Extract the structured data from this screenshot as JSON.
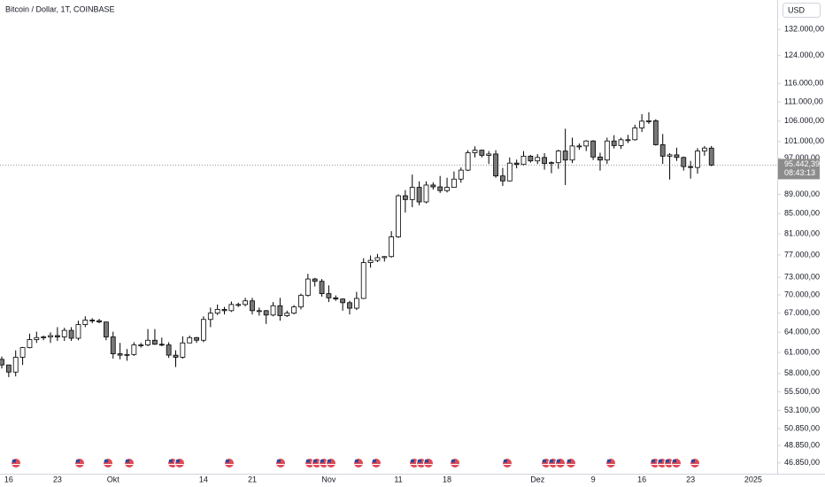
{
  "chart_data": {
    "type": "candlestick",
    "title": "Bitcoin / Dollar, 1T, COINBASE",
    "currency": "USD",
    "log_scale": true,
    "grid": false,
    "up_color": "#ffffff",
    "down_color": "#787878",
    "border_color": "#000000",
    "ylim": [
      45650,
      141600
    ],
    "yticks": [
      {
        "value": 132000,
        "label": "132.000,00"
      },
      {
        "value": 124000,
        "label": "124.000,00"
      },
      {
        "value": 116000,
        "label": "116.000,00"
      },
      {
        "value": 111000,
        "label": "111.000,00"
      },
      {
        "value": 106000,
        "label": "106.000,00"
      },
      {
        "value": 101000,
        "label": "101.000,00"
      },
      {
        "value": 97000,
        "label": "97.000,00"
      },
      {
        "value": 89000,
        "label": "89.000,00"
      },
      {
        "value": 85000,
        "label": "85.000,00"
      },
      {
        "value": 81000,
        "label": "81.000,00"
      },
      {
        "value": 77000,
        "label": "77.000,00"
      },
      {
        "value": 73000,
        "label": "73.000,00"
      },
      {
        "value": 70000,
        "label": "70.000,00"
      },
      {
        "value": 67000,
        "label": "67.000,00"
      },
      {
        "value": 64000,
        "label": "64.000,00"
      },
      {
        "value": 61000,
        "label": "61.000,00"
      },
      {
        "value": 58000,
        "label": "58.000,00"
      },
      {
        "value": 55500,
        "label": "55.500,00"
      },
      {
        "value": 53100,
        "label": "53.100,00"
      },
      {
        "value": 50850,
        "label": "50.850,00"
      },
      {
        "value": 48850,
        "label": "48.850,00"
      },
      {
        "value": 46850,
        "label": "46.850,00"
      }
    ],
    "last_price": {
      "value": 95442.39,
      "label": "95.442,39"
    },
    "countdown": "08:43:13",
    "categories": [
      null,
      "16",
      null,
      null,
      null,
      null,
      null,
      null,
      "23",
      null,
      null,
      null,
      null,
      null,
      null,
      null,
      "Okt",
      null,
      null,
      null,
      null,
      null,
      null,
      null,
      null,
      null,
      null,
      null,
      null,
      "14",
      null,
      null,
      null,
      null,
      null,
      null,
      "21",
      null,
      null,
      null,
      null,
      null,
      null,
      null,
      null,
      null,
      null,
      "Nov",
      null,
      null,
      null,
      null,
      null,
      null,
      null,
      null,
      null,
      "11",
      null,
      null,
      null,
      null,
      null,
      null,
      "18",
      null,
      null,
      null,
      null,
      null,
      null,
      null,
      null,
      null,
      null,
      null,
      null,
      "Dez",
      null,
      null,
      null,
      null,
      null,
      null,
      null,
      "9",
      null,
      null,
      null,
      null,
      null,
      null,
      "16",
      null,
      null,
      null,
      null,
      null,
      null,
      "23",
      null,
      null,
      null,
      null,
      null,
      null,
      null,
      null,
      "2025",
      null,
      null,
      null
    ],
    "open": [
      60000,
      59200,
      58200,
      60300,
      61700,
      62900,
      63200,
      63300,
      63500,
      63300,
      64300,
      63100,
      65200,
      65900,
      65800,
      65600,
      63300,
      60800,
      60600,
      60700,
      62100,
      62100,
      62800,
      62200,
      62100,
      60600,
      60300,
      62400,
      63200,
      62800,
      66000,
      67000,
      67600,
      67400,
      68400,
      68400,
      69000,
      67400,
      67400,
      66700,
      68200,
      66600,
      67000,
      68000,
      69900,
      72700,
      72300,
      70200,
      69500,
      69300,
      68700,
      67800,
      69400,
      75600,
      76000,
      76500,
      76700,
      80400,
      88700,
      87900,
      90500,
      87400,
      91000,
      90600,
      89800,
      90500,
      92300,
      94300,
      98300,
      98900,
      97700,
      98000,
      93000,
      91900,
      95900,
      95600,
      97500,
      96400,
      97200,
      95800,
      96000,
      98700,
      96600,
      99900,
      99900,
      101100,
      97300,
      96600,
      101100,
      100000,
      101400,
      101400,
      104300,
      106000,
      106100,
      100200,
      97500,
      97800,
      97200,
      95100,
      94900,
      98700,
      99400,
      null,
      null,
      null,
      null,
      null,
      null,
      null,
      null,
      null
    ],
    "high": [
      60400,
      59200,
      61300,
      61800,
      63800,
      64100,
      63500,
      64000,
      64800,
      64700,
      64800,
      65800,
      66500,
      66200,
      66100,
      65600,
      64100,
      62400,
      61500,
      62500,
      62400,
      64500,
      64500,
      63200,
      62500,
      61300,
      63400,
      63500,
      63300,
      66500,
      67900,
      68400,
      68000,
      68900,
      68700,
      69500,
      69500,
      67900,
      67500,
      68800,
      69500,
      67400,
      68300,
      70200,
      73600,
      72900,
      72700,
      71600,
      69900,
      69400,
      69000,
      70500,
      76400,
      76900,
      77200,
      76800,
      81500,
      89000,
      89900,
      93300,
      91800,
      91800,
      91600,
      93000,
      92600,
      94000,
      94900,
      98900,
      99800,
      99000,
      98700,
      98900,
      94800,
      97200,
      96700,
      98700,
      97800,
      98000,
      98200,
      96300,
      99000,
      104100,
      101900,
      100500,
      101300,
      101300,
      98300,
      101900,
      102500,
      101900,
      102600,
      105100,
      107800,
      108300,
      106500,
      102800,
      98200,
      99500,
      97400,
      96400,
      99400,
      99900,
      99900,
      null,
      null,
      null,
      null,
      null,
      null,
      null,
      null,
      null
    ],
    "low": [
      58700,
      57500,
      57600,
      59200,
      61600,
      62400,
      62800,
      62400,
      62700,
      62700,
      62700,
      62800,
      64800,
      65400,
      65400,
      62800,
      60100,
      60000,
      59800,
      60500,
      61700,
      61900,
      62100,
      61900,
      60200,
      58900,
      60100,
      62400,
      62400,
      62500,
      64800,
      66700,
      66800,
      67200,
      68000,
      68100,
      66800,
      66600,
      65300,
      66500,
      65800,
      66400,
      66800,
      67600,
      69700,
      71400,
      69700,
      68800,
      69000,
      67400,
      66800,
      67500,
      69300,
      74700,
      75700,
      75800,
      76500,
      80200,
      85200,
      86300,
      86700,
      87100,
      90000,
      89300,
      89400,
      90400,
      91500,
      94100,
      97200,
      97200,
      95700,
      92600,
      90800,
      91800,
      94700,
      95400,
      96000,
      95700,
      94400,
      93600,
      94600,
      91000,
      95900,
      99000,
      98700,
      96600,
      94200,
      95700,
      99300,
      99200,
      100600,
      101200,
      103300,
      105300,
      100000,
      95700,
      92200,
      96400,
      94200,
      92400,
      93500,
      97600,
      95200,
      null,
      null,
      null,
      null,
      null,
      null,
      null,
      null,
      null
    ],
    "close": [
      59200,
      58200,
      60300,
      61700,
      62900,
      63200,
      63300,
      63500,
      63300,
      64300,
      63100,
      65200,
      65900,
      65800,
      65600,
      63300,
      60800,
      60600,
      60700,
      62100,
      62100,
      62800,
      62200,
      62100,
      60600,
      60300,
      62400,
      63200,
      62800,
      66000,
      67000,
      67600,
      67400,
      68400,
      68400,
      69000,
      67400,
      67400,
      66700,
      68200,
      66600,
      67000,
      68000,
      69900,
      72700,
      72300,
      70200,
      69500,
      69300,
      68700,
      67800,
      69400,
      75600,
      76000,
      76500,
      76700,
      80400,
      88700,
      87900,
      90500,
      87400,
      91000,
      90600,
      89800,
      90500,
      92300,
      94300,
      98300,
      98900,
      97700,
      98000,
      93000,
      91900,
      95900,
      95600,
      97500,
      96400,
      97200,
      95800,
      96000,
      98700,
      96600,
      99900,
      99900,
      101100,
      97300,
      96600,
      101100,
      100000,
      101400,
      101400,
      104300,
      106000,
      106100,
      100200,
      97500,
      97800,
      97200,
      95100,
      94900,
      98700,
      99400,
      95442.39,
      null,
      null,
      null,
      null,
      null,
      null,
      null,
      null,
      null
    ]
  }
}
